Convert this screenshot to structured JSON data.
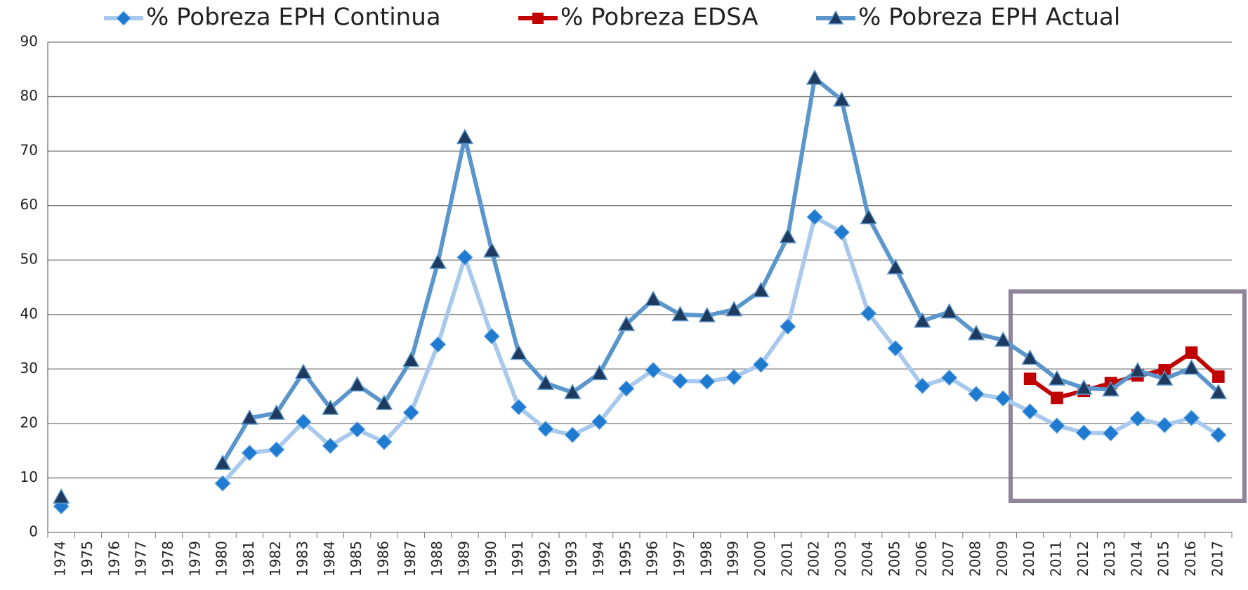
{
  "chart_data": {
    "type": "line",
    "categories": [
      "1974",
      "1975",
      "1976",
      "1977",
      "1978",
      "1979",
      "1980",
      "1981",
      "1982",
      "1983",
      "1984",
      "1985",
      "1986",
      "1987",
      "1988",
      "1989",
      "1990",
      "1991",
      "1992",
      "1993",
      "1994",
      "1995",
      "1996",
      "1997",
      "1998",
      "1999",
      "2000",
      "2001",
      "2002",
      "2003",
      "2004",
      "2005",
      "2006",
      "2007",
      "2008",
      "2009",
      "2010",
      "2011",
      "2012",
      "2013",
      "2014",
      "2015",
      "2016",
      "2017"
    ],
    "series": [
      {
        "name": "% Pobreza EPH Continua",
        "color": "#a9c9ec",
        "marker_color": "#1f7bd0",
        "marker": "diamond",
        "values": [
          4.8,
          null,
          null,
          null,
          null,
          null,
          9,
          14.6,
          15.2,
          20.3,
          15.9,
          18.9,
          16.6,
          22,
          34.5,
          50.5,
          36,
          23,
          19,
          17.9,
          20.3,
          26.4,
          29.8,
          27.8,
          27.7,
          28.5,
          30.8,
          37.8,
          57.9,
          55.1,
          40.2,
          33.8,
          26.9,
          28.4,
          25.4,
          24.6,
          22.2,
          19.6,
          18.3,
          18.2,
          20.9,
          19.7,
          21,
          17.9
        ]
      },
      {
        "name": "% Pobreza EDSA",
        "color": "#c00000",
        "marker_color": "#c00000",
        "marker": "square",
        "values": [
          null,
          null,
          null,
          null,
          null,
          null,
          null,
          null,
          null,
          null,
          null,
          null,
          null,
          null,
          null,
          null,
          null,
          null,
          null,
          null,
          null,
          null,
          null,
          null,
          null,
          null,
          null,
          null,
          null,
          null,
          null,
          null,
          null,
          null,
          null,
          null,
          28.2,
          24.7,
          26,
          27.4,
          28.8,
          29.8,
          33,
          28.6
        ]
      },
      {
        "name": "% Pobreza EPH Actual",
        "color": "#5a96cc",
        "marker_color": "#1f3a5f",
        "marker": "triangle",
        "values": [
          6.5,
          null,
          null,
          null,
          null,
          null,
          12.7,
          21,
          21.9,
          29.4,
          22.8,
          27.1,
          23.7,
          31.6,
          49.6,
          72.5,
          51.7,
          32.9,
          27.4,
          25.7,
          29.2,
          38.2,
          42.8,
          40,
          39.8,
          40.9,
          44.4,
          54.3,
          83.4,
          79.4,
          57.8,
          48.6,
          38.8,
          40.5,
          36.5,
          35.3,
          32,
          28.2,
          26.5,
          26.2,
          29.7,
          28.2,
          30.2,
          25.7
        ]
      }
    ],
    "ylim": [
      0,
      90
    ],
    "yticks": [
      0,
      10,
      20,
      30,
      40,
      50,
      60,
      70,
      80,
      90
    ],
    "grid": true
  }
}
